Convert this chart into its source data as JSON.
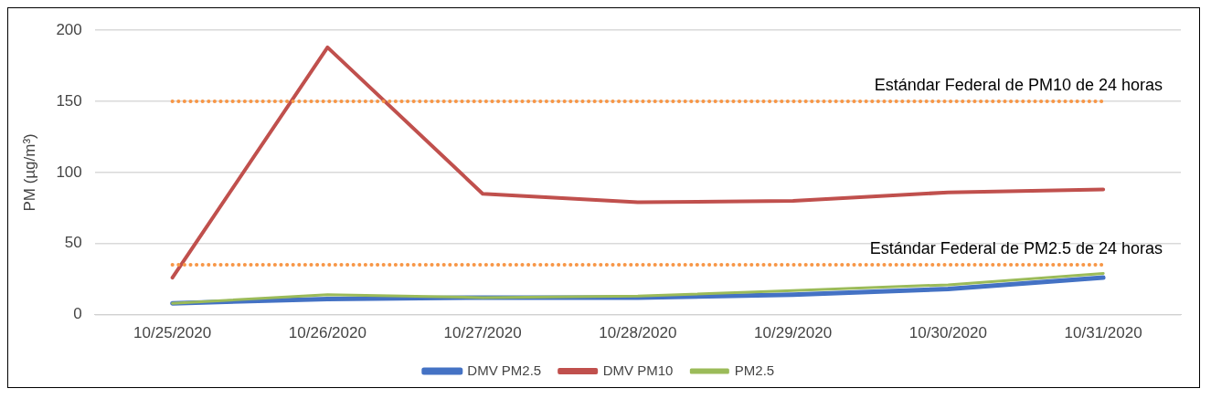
{
  "chart_data": {
    "type": "line",
    "ylabel": "PM (µg/m³)",
    "categories": [
      "10/25/2020",
      "10/26/2020",
      "10/27/2020",
      "10/28/2020",
      "10/29/2020",
      "10/30/2020",
      "10/31/2020"
    ],
    "series": [
      {
        "name": "DMV PM2.5",
        "color": "#4472c4",
        "values": [
          8,
          11,
          12,
          12,
          14,
          18,
          26
        ]
      },
      {
        "name": "DMV PM10",
        "color": "#c0504d",
        "values": [
          26,
          188,
          85,
          79,
          80,
          86,
          88
        ]
      },
      {
        "name": "PM2.5",
        "color": "#9bbb59",
        "values": [
          8,
          14,
          12,
          13,
          17,
          21,
          29
        ]
      }
    ],
    "ylim": [
      0,
      200
    ],
    "yticks": [
      0,
      50,
      100,
      150,
      200
    ],
    "grid": "y",
    "legend": "bottom",
    "marker": "none",
    "line_style": "solid",
    "ref_lines": [
      {
        "axis": "y",
        "value": 150,
        "label": "Estándar Federal de PM10 de 24 horas",
        "color": "#f79646",
        "line_style": "dotted"
      },
      {
        "axis": "y",
        "value": 35,
        "label": "Estándar Federal de PM2.5 de 24 horas",
        "color": "#f79646",
        "line_style": "dotted"
      }
    ]
  }
}
